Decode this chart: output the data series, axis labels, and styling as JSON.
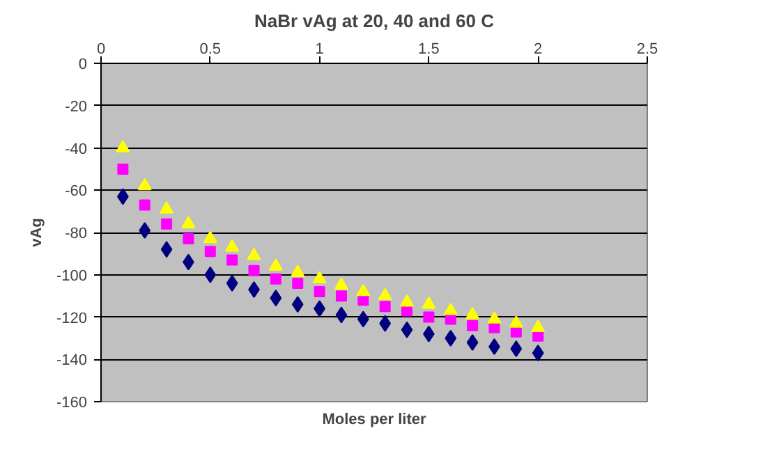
{
  "chart_data": {
    "type": "scatter",
    "title": "NaBr vAg at 20, 40 and 60 C",
    "xlabel": "Moles per liter",
    "ylabel": "vAg",
    "x": [
      0.1,
      0.2,
      0.3,
      0.4,
      0.5,
      0.6,
      0.7,
      0.8,
      0.9,
      1.0,
      1.1,
      1.2,
      1.3,
      1.4,
      1.5,
      1.6,
      1.7,
      1.8,
      1.9,
      2.0
    ],
    "series": [
      {
        "color": "#000080",
        "marker": "diamond",
        "values": [
          -63,
          -79,
          -88,
          -94,
          -100,
          -104,
          -107,
          -111,
          -114,
          -116,
          -119,
          -121,
          -123,
          -126,
          -128,
          -130,
          -132,
          -134,
          -135,
          -137
        ]
      },
      {
        "color": "#ff00ff",
        "marker": "square",
        "values": [
          -50,
          -67,
          -76,
          -83,
          -89,
          -93,
          -98,
          -102,
          -104,
          -108,
          -110,
          -112,
          -115,
          -117,
          -120,
          -121,
          -124,
          -125,
          -127,
          -129
        ]
      },
      {
        "color": "#ffff00",
        "marker": "triangle",
        "values": [
          -40,
          -58,
          -69,
          -76,
          -83,
          -87,
          -91,
          -96,
          -99,
          -102,
          -105,
          -108,
          -110,
          -113,
          -114,
          -117,
          -119,
          -121,
          -123,
          -125
        ]
      }
    ],
    "xlim": [
      0,
      2.5
    ],
    "xticks": [
      0,
      0.5,
      1,
      1.5,
      2,
      2.5
    ],
    "ylim": [
      -160,
      0
    ],
    "yticks": [
      -160,
      -140,
      -120,
      -100,
      -80,
      -60,
      -40,
      -20,
      0
    ],
    "grid": "y"
  }
}
